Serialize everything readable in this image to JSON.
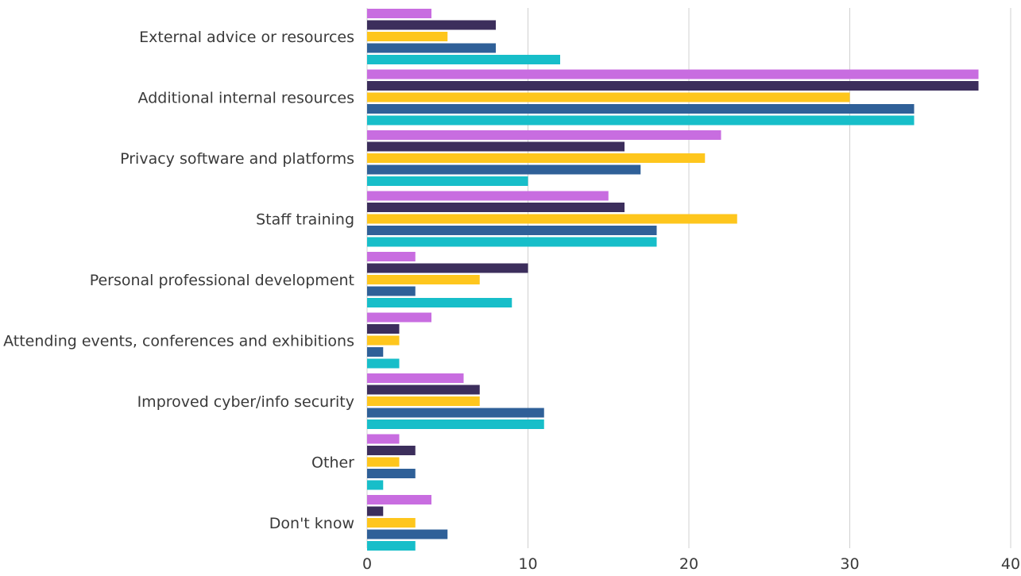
{
  "chart_data": {
    "type": "bar",
    "orientation": "horizontal",
    "title": "",
    "xlabel": "",
    "ylabel": "",
    "xlim": [
      0,
      40
    ],
    "xticks": [
      0,
      10,
      20,
      30,
      40
    ],
    "xtick_labels": [
      "0",
      "10",
      "20",
      "30",
      "40"
    ],
    "grid": "vertical",
    "legend": "none",
    "categories": [
      "External advice or resources",
      "Additional internal resources",
      "Privacy software and platforms",
      "Staff training",
      "Personal professional development",
      "Attending events, conferences and exhibitions",
      "Improved cyber/info security",
      "Other",
      "Don't know"
    ],
    "series": [
      {
        "color": "#c86de0",
        "values": [
          4,
          38,
          22,
          15,
          3,
          4,
          6,
          2,
          4
        ]
      },
      {
        "color": "#3c2e5c",
        "values": [
          8,
          38,
          16,
          16,
          10,
          2,
          7,
          3,
          1
        ]
      },
      {
        "color": "#fec61d",
        "values": [
          5,
          30,
          21,
          23,
          7,
          2,
          7,
          2,
          3
        ]
      },
      {
        "color": "#2f6098",
        "values": [
          8,
          34,
          17,
          18,
          3,
          1,
          11,
          3,
          5
        ]
      },
      {
        "color": "#17bec9",
        "values": [
          12,
          34,
          10,
          18,
          9,
          2,
          11,
          1,
          3
        ]
      }
    ],
    "colors": {
      "grid": "#d0d0d0",
      "text": "#3a3a3a"
    }
  }
}
